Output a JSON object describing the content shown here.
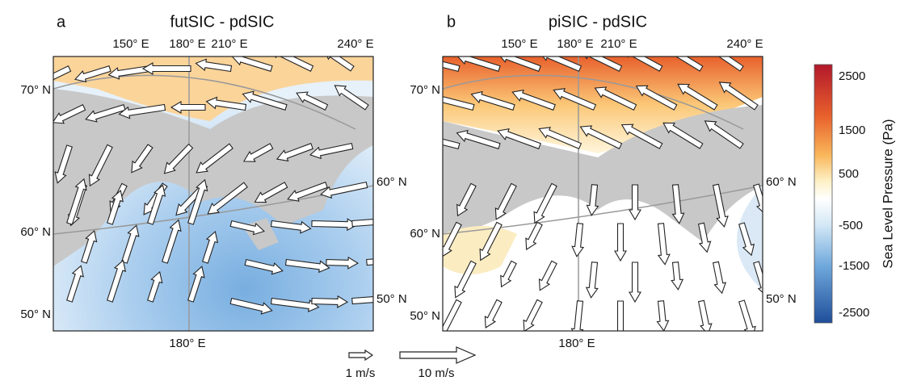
{
  "panels": [
    {
      "letter": "a",
      "title": "futSIC - pdSIC",
      "top_lon_labels": [
        "150° E",
        "180° E",
        "210° E",
        "240° E"
      ],
      "bottom_lon_label": "180° E",
      "left_lat_labels": [
        "70° N",
        "60° N",
        "50° N"
      ],
      "right_lat_labels": [
        "60° N",
        "50° N"
      ]
    },
    {
      "letter": "b",
      "title": "piSIC - pdSIC",
      "top_lon_labels": [
        "150° E",
        "180° E",
        "210° E",
        "240° E"
      ],
      "bottom_lon_label": "180° E",
      "left_lat_labels": [
        "70° N",
        "60° N",
        "50° N"
      ],
      "right_lat_labels": [
        "60° N",
        "50° N"
      ]
    }
  ],
  "colorbar": {
    "label": "Sea Level Pressure (Pa)",
    "ticks": [
      2500,
      1500,
      500,
      -500,
      -1500,
      -2500
    ]
  },
  "vector_legend": {
    "small": "1 m/s",
    "large": "10 m/s"
  }
}
